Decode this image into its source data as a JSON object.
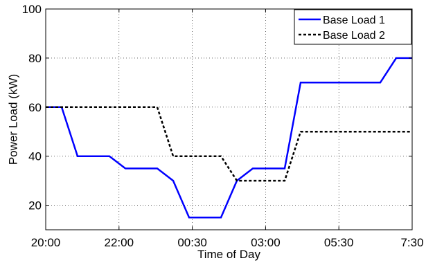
{
  "chart_data": {
    "type": "line",
    "title": "",
    "xlabel": "Time of Day",
    "ylabel": "Power Load (kW)",
    "xlim": [
      "20:00",
      "07:30"
    ],
    "ylim": [
      10,
      100
    ],
    "x_tick_labels": [
      "20:00",
      "22:00",
      "00:30",
      "03:00",
      "05:30",
      "7:30"
    ],
    "y_tick_labels": [
      "20",
      "40",
      "60",
      "80",
      "100"
    ],
    "grid": true,
    "legend_position": "top-right",
    "series": [
      {
        "name": "Base Load 1",
        "color": "#0000ff",
        "style": "solid",
        "x": [
          "20:00",
          "20:30",
          "21:00",
          "21:30",
          "22:00",
          "22:30",
          "23:00",
          "23:30",
          "00:00",
          "00:30",
          "01:00",
          "01:30",
          "02:00",
          "02:30",
          "03:00",
          "03:30",
          "04:00",
          "04:30",
          "05:00",
          "05:30",
          "06:00",
          "06:30",
          "07:00",
          "07:30"
        ],
        "values": [
          60,
          60,
          40,
          40,
          40,
          35,
          35,
          35,
          30,
          15,
          15,
          15,
          30,
          35,
          35,
          35,
          70,
          70,
          70,
          70,
          70,
          70,
          80,
          80
        ]
      },
      {
        "name": "Base Load 2",
        "color": "#000000",
        "style": "dotted",
        "x": [
          "20:00",
          "20:30",
          "21:00",
          "21:30",
          "22:00",
          "22:30",
          "23:00",
          "23:30",
          "00:00",
          "00:30",
          "01:00",
          "01:30",
          "02:00",
          "02:30",
          "03:00",
          "03:30",
          "04:00",
          "04:30",
          "05:00",
          "05:30",
          "06:00",
          "06:30",
          "07:00",
          "07:30"
        ],
        "values": [
          60,
          60,
          60,
          60,
          60,
          60,
          60,
          60,
          40,
          40,
          40,
          40,
          30,
          30,
          30,
          30,
          50,
          50,
          50,
          50,
          50,
          50,
          50,
          50
        ]
      }
    ]
  }
}
